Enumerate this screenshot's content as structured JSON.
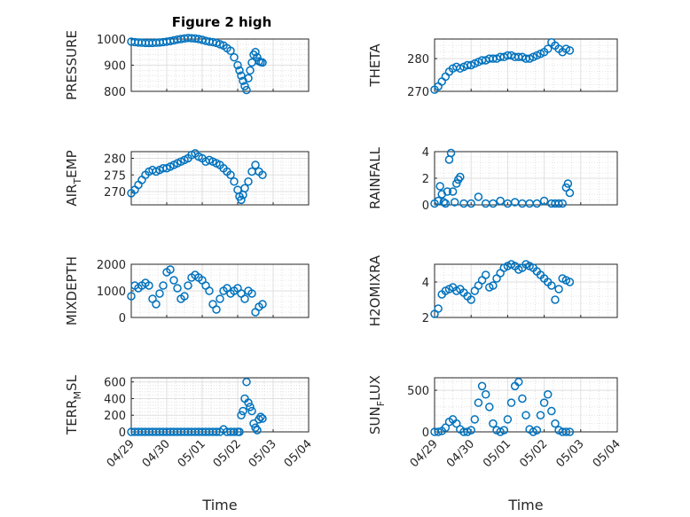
{
  "figure": {
    "title": "Figure 2 high",
    "xlabel": "Time"
  },
  "colors": {
    "marker": "#0072BD",
    "axes": "#262626",
    "grid": "#DFDFDF",
    "minor_grid": "#CFCFCF"
  },
  "x_ticks": [
    "04/29",
    "04/30",
    "05/01",
    "05/02",
    "05/03",
    "05/04"
  ],
  "chart_data": [
    {
      "type": "scatter",
      "ylabel": "PRESSURE",
      "ylim": [
        800,
        1000
      ],
      "yticks": [
        800,
        900,
        1000
      ],
      "xlim": [
        "04/29",
        "05/04"
      ],
      "grid": true,
      "x": [
        0.0,
        0.1,
        0.2,
        0.3,
        0.4,
        0.5,
        0.6,
        0.7,
        0.8,
        0.9,
        1.0,
        1.1,
        1.2,
        1.3,
        1.4,
        1.5,
        1.6,
        1.7,
        1.8,
        1.9,
        2.0,
        2.1,
        2.2,
        2.3,
        2.4,
        2.5,
        2.6,
        2.7,
        2.8,
        2.9,
        3.0,
        3.05,
        3.1,
        3.15,
        3.2,
        3.25,
        3.3,
        3.35,
        3.4,
        3.45,
        3.5,
        3.55,
        3.6,
        3.65,
        3.7
      ],
      "y": [
        990,
        988,
        987,
        986,
        985,
        985,
        985,
        986,
        987,
        988,
        990,
        992,
        995,
        998,
        1000,
        1002,
        1004,
        1003,
        1002,
        1000,
        997,
        993,
        990,
        988,
        985,
        980,
        975,
        965,
        955,
        930,
        900,
        880,
        860,
        840,
        820,
        805,
        850,
        880,
        910,
        940,
        950,
        930,
        915,
        912,
        910
      ]
    },
    {
      "type": "scatter",
      "ylabel": "THETA",
      "ylim": [
        270,
        286
      ],
      "yticks": [
        270,
        280
      ],
      "xlim": [
        "04/29",
        "05/04"
      ],
      "grid": true,
      "x": [
        0.0,
        0.1,
        0.2,
        0.3,
        0.4,
        0.5,
        0.6,
        0.7,
        0.8,
        0.9,
        1.0,
        1.1,
        1.2,
        1.3,
        1.4,
        1.5,
        1.6,
        1.7,
        1.8,
        1.9,
        2.0,
        2.1,
        2.2,
        2.3,
        2.4,
        2.5,
        2.6,
        2.7,
        2.8,
        2.9,
        3.0,
        3.1,
        3.2,
        3.3,
        3.4,
        3.5,
        3.6,
        3.7
      ],
      "y": [
        270.5,
        271.5,
        273,
        274.5,
        276,
        277,
        277.5,
        277,
        277.5,
        278,
        278,
        278.5,
        279,
        279.5,
        279.5,
        280,
        280,
        280,
        280.5,
        280.5,
        281,
        281,
        280.5,
        280.5,
        280.5,
        280,
        280,
        280.5,
        281,
        281.5,
        282,
        283,
        285,
        284,
        283,
        282,
        283,
        282.5
      ]
    },
    {
      "type": "scatter",
      "ylabel": "AIR_TEMP",
      "ylim": [
        266,
        282
      ],
      "yticks": [
        270,
        275,
        280
      ],
      "xlim": [
        "04/29",
        "05/04"
      ],
      "grid": true,
      "x": [
        0.0,
        0.1,
        0.2,
        0.3,
        0.4,
        0.5,
        0.6,
        0.7,
        0.8,
        0.9,
        1.0,
        1.1,
        1.2,
        1.3,
        1.4,
        1.5,
        1.6,
        1.7,
        1.8,
        1.9,
        2.0,
        2.1,
        2.2,
        2.3,
        2.4,
        2.5,
        2.6,
        2.7,
        2.8,
        2.9,
        3.0,
        3.05,
        3.1,
        3.15,
        3.2,
        3.3,
        3.4,
        3.5,
        3.6,
        3.7
      ],
      "y": [
        269.5,
        270.5,
        272,
        273.5,
        275,
        276,
        276.5,
        276,
        276.5,
        277,
        277,
        277.5,
        278,
        278.5,
        279,
        279.5,
        280,
        281,
        281.5,
        280.5,
        280,
        279,
        279.5,
        279,
        278.5,
        278,
        277,
        276,
        275,
        273,
        270.5,
        268.5,
        267.5,
        269,
        271,
        273,
        276,
        278,
        276,
        275
      ]
    },
    {
      "type": "scatter",
      "ylabel": "RAINFALL",
      "ylim": [
        0,
        4
      ],
      "yticks": [
        0,
        2,
        4
      ],
      "xlim": [
        "04/29",
        "05/04"
      ],
      "grid": true,
      "x": [
        0.0,
        0.1,
        0.15,
        0.2,
        0.25,
        0.3,
        0.35,
        0.4,
        0.45,
        0.5,
        0.55,
        0.6,
        0.65,
        0.7,
        0.8,
        1.0,
        1.2,
        1.4,
        1.6,
        1.8,
        2.0,
        2.2,
        2.4,
        2.6,
        2.8,
        3.0,
        3.2,
        3.3,
        3.4,
        3.5,
        3.6,
        3.65,
        3.7
      ],
      "y": [
        0.1,
        0.3,
        1.4,
        0.8,
        0.2,
        0.1,
        1.0,
        3.4,
        3.9,
        1.0,
        0.2,
        1.6,
        1.9,
        2.1,
        0.1,
        0.1,
        0.6,
        0.1,
        0.1,
        0.3,
        0.1,
        0.2,
        0.1,
        0.1,
        0.1,
        0.3,
        0.1,
        0.1,
        0.1,
        0.1,
        1.3,
        1.6,
        0.9
      ]
    },
    {
      "type": "scatter",
      "ylabel": "MIXDEPTH",
      "ylim": [
        0,
        2000
      ],
      "yticks": [
        0,
        1000,
        2000
      ],
      "xlim": [
        "04/29",
        "05/04"
      ],
      "grid": true,
      "x": [
        0.0,
        0.1,
        0.2,
        0.3,
        0.4,
        0.5,
        0.6,
        0.7,
        0.8,
        0.9,
        1.0,
        1.1,
        1.2,
        1.3,
        1.4,
        1.5,
        1.6,
        1.7,
        1.8,
        1.9,
        2.0,
        2.1,
        2.2,
        2.3,
        2.4,
        2.5,
        2.6,
        2.7,
        2.8,
        2.9,
        3.0,
        3.1,
        3.2,
        3.3,
        3.4,
        3.5,
        3.6,
        3.7
      ],
      "y": [
        800,
        1200,
        1100,
        1200,
        1300,
        1200,
        700,
        500,
        900,
        1200,
        1700,
        1800,
        1400,
        1100,
        700,
        800,
        1200,
        1500,
        1600,
        1500,
        1400,
        1200,
        1000,
        500,
        300,
        700,
        1000,
        1100,
        900,
        1000,
        1100,
        900,
        700,
        1000,
        900,
        200,
        400,
        500
      ]
    },
    {
      "type": "scatter",
      "ylabel": "H2OMIXRA",
      "ylim": [
        2,
        5
      ],
      "yticks": [
        2,
        4
      ],
      "xlim": [
        "04/29",
        "05/04"
      ],
      "grid": true,
      "x": [
        0.0,
        0.1,
        0.2,
        0.3,
        0.4,
        0.5,
        0.6,
        0.7,
        0.8,
        0.9,
        1.0,
        1.1,
        1.2,
        1.3,
        1.4,
        1.5,
        1.6,
        1.7,
        1.8,
        1.9,
        2.0,
        2.1,
        2.2,
        2.3,
        2.4,
        2.5,
        2.6,
        2.7,
        2.8,
        2.9,
        3.0,
        3.1,
        3.2,
        3.3,
        3.4,
        3.5,
        3.6,
        3.7
      ],
      "y": [
        2.2,
        2.5,
        3.3,
        3.5,
        3.6,
        3.7,
        3.5,
        3.6,
        3.4,
        3.2,
        3.0,
        3.5,
        3.8,
        4.1,
        4.4,
        3.7,
        3.8,
        4.2,
        4.5,
        4.8,
        4.9,
        5.0,
        4.9,
        4.7,
        4.8,
        5.0,
        4.9,
        4.8,
        4.6,
        4.4,
        4.2,
        4.0,
        3.8,
        3.0,
        3.6,
        4.2,
        4.1,
        4.0
      ]
    },
    {
      "type": "scatter",
      "ylabel": "TERR_MSL",
      "ylim": [
        0,
        650
      ],
      "yticks": [
        0,
        200,
        400,
        600
      ],
      "xlim": [
        "04/29",
        "05/04"
      ],
      "grid": true,
      "x": [
        0.0,
        0.1,
        0.2,
        0.3,
        0.4,
        0.5,
        0.6,
        0.7,
        0.8,
        0.9,
        1.0,
        1.1,
        1.2,
        1.3,
        1.4,
        1.5,
        1.6,
        1.7,
        1.8,
        1.9,
        2.0,
        2.1,
        2.2,
        2.3,
        2.4,
        2.5,
        2.6,
        2.7,
        2.8,
        2.9,
        3.0,
        3.05,
        3.1,
        3.15,
        3.2,
        3.25,
        3.3,
        3.35,
        3.4,
        3.45,
        3.5,
        3.55,
        3.6,
        3.65,
        3.7
      ],
      "y": [
        0,
        0,
        0,
        0,
        0,
        0,
        0,
        0,
        0,
        0,
        0,
        0,
        0,
        0,
        0,
        0,
        0,
        0,
        0,
        0,
        0,
        0,
        0,
        0,
        0,
        0,
        30,
        0,
        0,
        0,
        0,
        0,
        200,
        250,
        400,
        600,
        350,
        300,
        250,
        100,
        50,
        20,
        150,
        180,
        160
      ]
    },
    {
      "type": "scatter",
      "ylabel": "SUN_FLUX",
      "ylim": [
        0,
        650
      ],
      "yticks": [
        0,
        500
      ],
      "xlim": [
        "04/29",
        "05/04"
      ],
      "grid": true,
      "x": [
        0.0,
        0.1,
        0.2,
        0.3,
        0.4,
        0.5,
        0.6,
        0.7,
        0.8,
        0.9,
        1.0,
        1.1,
        1.2,
        1.3,
        1.4,
        1.5,
        1.6,
        1.7,
        1.8,
        1.9,
        2.0,
        2.1,
        2.2,
        2.3,
        2.4,
        2.5,
        2.6,
        2.7,
        2.8,
        2.9,
        3.0,
        3.1,
        3.2,
        3.3,
        3.4,
        3.5,
        3.6,
        3.7
      ],
      "y": [
        0,
        0,
        10,
        50,
        120,
        150,
        100,
        30,
        0,
        0,
        20,
        150,
        350,
        550,
        450,
        300,
        100,
        20,
        0,
        20,
        150,
        350,
        550,
        600,
        400,
        200,
        30,
        0,
        20,
        200,
        350,
        450,
        250,
        100,
        20,
        0,
        0,
        0
      ]
    }
  ]
}
